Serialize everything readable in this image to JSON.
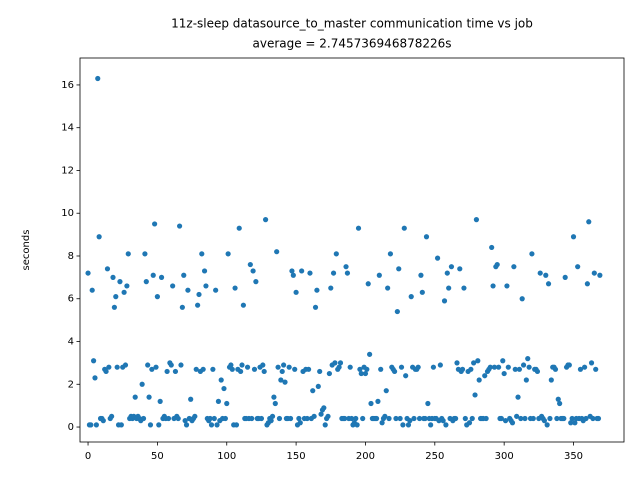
{
  "chart_data": {
    "type": "scatter",
    "title": "11z-sleep datasource_to_master communication time vs job",
    "subtitle": "average = 2.745736946878226s",
    "ylabel": "seconds",
    "color": "#1f77b4",
    "xlim": [
      -5.8,
      386.4
    ],
    "ylim": [
      -0.7,
      17.26
    ],
    "xticks": [
      0,
      50,
      100,
      150,
      200,
      250,
      300,
      350
    ],
    "yticks": [
      0,
      2,
      4,
      6,
      8,
      10,
      12,
      14,
      16
    ],
    "x": [
      0,
      1,
      2,
      3,
      4,
      5,
      6,
      7,
      8,
      9,
      10,
      11,
      12,
      13,
      14,
      15,
      16,
      17,
      18,
      19,
      20,
      21,
      22,
      23,
      24,
      25,
      26,
      27,
      28,
      29,
      30,
      31,
      32,
      33,
      34,
      35,
      36,
      37,
      38,
      39,
      40,
      41,
      42,
      43,
      44,
      45,
      46,
      47,
      48,
      49,
      50,
      51,
      52,
      53,
      54,
      55,
      56,
      57,
      58,
      59,
      60,
      61,
      62,
      63,
      64,
      65,
      66,
      67,
      68,
      69,
      70,
      71,
      72,
      73,
      74,
      75,
      76,
      77,
      78,
      79,
      80,
      81,
      82,
      83,
      84,
      85,
      86,
      87,
      88,
      89,
      90,
      91,
      92,
      93,
      94,
      95,
      96,
      97,
      98,
      99,
      100,
      101,
      102,
      103,
      104,
      105,
      106,
      107,
      108,
      109,
      110,
      111,
      112,
      113,
      114,
      115,
      116,
      117,
      118,
      119,
      120,
      121,
      122,
      123,
      124,
      125,
      126,
      127,
      128,
      129,
      130,
      131,
      132,
      133,
      134,
      135,
      136,
      137,
      138,
      139,
      140,
      141,
      142,
      143,
      144,
      145,
      146,
      147,
      148,
      149,
      150,
      151,
      152,
      153,
      154,
      155,
      156,
      157,
      158,
      159,
      160,
      161,
      162,
      163,
      164,
      165,
      166,
      167,
      168,
      169,
      170,
      171,
      172,
      173,
      174,
      175,
      176,
      177,
      178,
      179,
      180,
      181,
      182,
      183,
      184,
      185,
      186,
      187,
      188,
      189,
      190,
      191,
      192,
      193,
      194,
      195,
      196,
      197,
      198,
      199,
      200,
      201,
      202,
      203,
      204,
      205,
      206,
      207,
      208,
      209,
      210,
      211,
      212,
      213,
      214,
      215,
      216,
      217,
      218,
      219,
      220,
      221,
      222,
      223,
      224,
      225,
      226,
      227,
      228,
      229,
      230,
      231,
      232,
      233,
      234,
      235,
      236,
      237,
      238,
      239,
      240,
      241,
      242,
      243,
      244,
      245,
      246,
      247,
      248,
      249,
      250,
      251,
      252,
      253,
      254,
      255,
      256,
      257,
      258,
      259,
      260,
      261,
      262,
      263,
      264,
      265,
      266,
      267,
      268,
      269,
      270,
      271,
      272,
      273,
      274,
      275,
      276,
      277,
      278,
      279,
      280,
      281,
      282,
      283,
      284,
      285,
      286,
      287,
      288,
      289,
      290,
      291,
      292,
      293,
      294,
      295,
      296,
      297,
      298,
      299,
      300,
      301,
      302,
      303,
      304,
      305,
      306,
      307,
      308,
      309,
      310,
      311,
      312,
      313,
      314,
      315,
      316,
      317,
      318,
      319,
      320,
      321,
      322,
      323,
      324,
      325,
      326,
      327,
      328,
      329,
      330,
      331,
      332,
      333,
      334,
      335,
      336,
      337,
      338,
      339,
      340,
      341,
      342,
      343,
      344,
      345,
      346,
      347,
      348,
      349,
      350,
      351,
      352,
      353,
      354,
      355,
      356,
      357,
      358,
      359,
      360,
      361,
      362,
      363,
      364,
      365,
      366,
      367,
      368,
      369
    ],
    "values": [
      7.2,
      0.1,
      0.1,
      6.4,
      3.1,
      2.3,
      0.1,
      16.3,
      8.9,
      0.4,
      0.4,
      0.3,
      2.7,
      2.6,
      7.4,
      2.8,
      0.4,
      0.5,
      7.0,
      5.6,
      6.1,
      2.8,
      0.1,
      6.8,
      0.1,
      2.8,
      6.3,
      2.9,
      6.6,
      8.1,
      0.4,
      0.5,
      0.4,
      0.5,
      1.4,
      0.4,
      0.5,
      0.4,
      0.3,
      2.0,
      0.4,
      8.1,
      6.8,
      2.9,
      1.4,
      0.1,
      2.7,
      7.1,
      9.5,
      2.8,
      6.1,
      0.1,
      1.2,
      7.0,
      0.4,
      0.5,
      0.4,
      2.6,
      0.4,
      3.0,
      2.9,
      6.6,
      0.4,
      2.6,
      0.5,
      0.4,
      9.4,
      2.9,
      5.6,
      7.1,
      0.3,
      0.1,
      6.4,
      0.4,
      1.3,
      0.3,
      0.4,
      0.5,
      2.7,
      5.7,
      6.2,
      2.6,
      8.1,
      2.7,
      7.3,
      6.6,
      0.4,
      0.3,
      0.4,
      0.1,
      2.7,
      0.4,
      6.4,
      0.1,
      1.2,
      0.3,
      2.2,
      0.4,
      1.8,
      0.4,
      1.1,
      8.1,
      2.8,
      2.9,
      2.7,
      0.1,
      6.5,
      0.1,
      2.7,
      9.3,
      2.6,
      2.9,
      5.7,
      0.4,
      0.4,
      2.8,
      0.4,
      7.6,
      0.4,
      7.3,
      2.7,
      6.8,
      0.4,
      0.4,
      2.8,
      0.4,
      2.9,
      2.6,
      9.7,
      0.1,
      0.2,
      0.4,
      0.3,
      0.5,
      1.4,
      1.1,
      8.2,
      2.8,
      0.4,
      2.2,
      2.6,
      2.9,
      2.1,
      0.4,
      0.4,
      2.8,
      0.4,
      7.3,
      7.1,
      2.7,
      6.3,
      0.1,
      0.4,
      0.2,
      7.3,
      2.6,
      0.4,
      2.7,
      0.4,
      2.7,
      7.2,
      0.4,
      1.7,
      0.5,
      5.6,
      6.4,
      1.9,
      2.6,
      0.6,
      0.8,
      0.9,
      0.1,
      0.4,
      0.5,
      2.5,
      6.5,
      2.9,
      7.2,
      3.0,
      8.1,
      2.7,
      2.8,
      3.0,
      0.4,
      0.4,
      0.4,
      7.5,
      7.2,
      0.4,
      2.8,
      0.4,
      0.1,
      0.2,
      0.4,
      0.1,
      9.3,
      2.7,
      2.5,
      0.4,
      2.8,
      2.5,
      2.7,
      6.7,
      3.4,
      1.1,
      0.4,
      0.4,
      0.4,
      0.4,
      1.2,
      7.1,
      2.7,
      0.2,
      0.4,
      0.5,
      1.7,
      6.5,
      0.4,
      8.1,
      2.8,
      2.7,
      2.6,
      0.4,
      5.4,
      7.4,
      0.4,
      2.8,
      0.1,
      9.3,
      2.4,
      0.4,
      0.1,
      0.3,
      6.1,
      2.8,
      0.4,
      2.7,
      2.7,
      2.8,
      0.4,
      7.1,
      6.3,
      0.4,
      0.4,
      8.9,
      1.1,
      0.4,
      0.1,
      0.4,
      2.8,
      0.4,
      0.4,
      7.9,
      0.3,
      2.9,
      0.4,
      0.3,
      5.9,
      0.1,
      7.2,
      6.5,
      0.4,
      7.5,
      0.3,
      0.4,
      0.4,
      3.0,
      2.7,
      7.4,
      2.6,
      2.7,
      6.5,
      0.4,
      0.1,
      2.6,
      0.2,
      2.7,
      0.4,
      3.0,
      1.5,
      9.7,
      3.1,
      2.2,
      0.4,
      0.4,
      0.4,
      2.4,
      0.4,
      2.6,
      2.7,
      2.8,
      8.4,
      6.6,
      2.8,
      7.5,
      7.6,
      2.8,
      0.4,
      0.4,
      3.1,
      2.5,
      0.3,
      6.6,
      2.8,
      0.4,
      0.3,
      0.2,
      7.5,
      2.7,
      0.5,
      1.4,
      2.7,
      0.4,
      6.0,
      2.9,
      0.4,
      2.2,
      3.2,
      2.8,
      0.4,
      8.1,
      0.4,
      2.7,
      2.7,
      2.6,
      0.4,
      7.2,
      0.5,
      0.4,
      0.3,
      7.1,
      0.1,
      6.7,
      0.4,
      2.2,
      2.8,
      2.8,
      2.7,
      0.4,
      1.3,
      1.1,
      0.4,
      0.4,
      0.4,
      7.0,
      2.8,
      2.9,
      2.9,
      0.2,
      0.4,
      8.9,
      0.2,
      0.4,
      7.5,
      0.4,
      2.7,
      0.4,
      0.3,
      2.8,
      0.4,
      6.7,
      9.6,
      0.5,
      3.0,
      0.4,
      7.2,
      2.7,
      0.4,
      0.4,
      7.1
    ]
  }
}
